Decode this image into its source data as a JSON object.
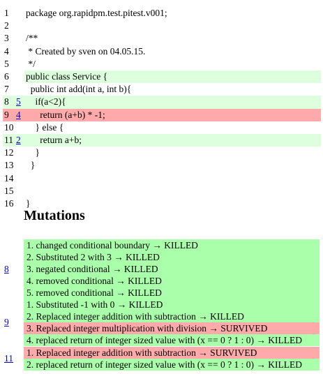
{
  "code_lines": [
    {
      "n": "1",
      "m": "",
      "text": "package org.rapidpm.test.pitest.v001;",
      "st": ""
    },
    {
      "n": "2",
      "m": "",
      "text": "",
      "st": ""
    },
    {
      "n": "3",
      "m": "",
      "text": "/**",
      "st": ""
    },
    {
      "n": "4",
      "m": "",
      "text": " * Created by sven on 04.05.15.",
      "st": ""
    },
    {
      "n": "5",
      "m": "",
      "text": " */",
      "st": ""
    },
    {
      "n": "6",
      "m": "",
      "text": "public class Service {",
      "st": "covered"
    },
    {
      "n": "7",
      "m": "",
      "text": "  public int add(int a, int b){",
      "st": ""
    },
    {
      "n": "8",
      "m": "5",
      "text": "    if(a<2){",
      "st": "covered"
    },
    {
      "n": "9",
      "m": "4",
      "text": "      return (a+b) * -1;",
      "st": "uncovered"
    },
    {
      "n": "10",
      "m": "",
      "text": "    } else {",
      "st": ""
    },
    {
      "n": "11",
      "m": "2",
      "text": "      return a+b;",
      "st": "covered"
    },
    {
      "n": "12",
      "m": "",
      "text": "    }",
      "st": ""
    },
    {
      "n": "13",
      "m": "",
      "text": "  }",
      "st": ""
    },
    {
      "n": "14",
      "m": "",
      "text": "",
      "st": ""
    },
    {
      "n": "15",
      "m": "",
      "text": "",
      "st": ""
    },
    {
      "n": "16",
      "m": "",
      "text": "}",
      "st": ""
    }
  ],
  "mutations_title": "Mutations",
  "mutation_groups": [
    {
      "line": "8",
      "items": [
        {
          "text": "1. changed conditional boundary → KILLED",
          "status": "KILLED"
        },
        {
          "text": "2. Substituted 2 with 3 → KILLED",
          "status": "KILLED"
        },
        {
          "text": "3. negated conditional → KILLED",
          "status": "KILLED"
        },
        {
          "text": "4. removed conditional → KILLED",
          "status": "KILLED"
        },
        {
          "text": "5. removed conditional → KILLED",
          "status": "KILLED"
        }
      ]
    },
    {
      "line": "9",
      "items": [
        {
          "text": "1. Substituted -1 with 0 → KILLED",
          "status": "KILLED"
        },
        {
          "text": "2. Replaced integer addition with subtraction → KILLED",
          "status": "KILLED"
        },
        {
          "text": "3. Replaced integer multiplication with division → SURVIVED",
          "status": "SURVIVED"
        },
        {
          "text": "4. replaced return of integer sized value with (x == 0 ? 1 : 0) → KILLED",
          "status": "KILLED"
        }
      ]
    },
    {
      "line": "11",
      "items": [
        {
          "text": "1. Replaced integer addition with subtraction → SURVIVED",
          "status": "SURVIVED"
        },
        {
          "text": "2. replaced return of integer sized value with (x == 0 ? 1 : 0) → KILLED",
          "status": "KILLED"
        }
      ]
    }
  ],
  "colors": {
    "covered_line": "#ddffdd",
    "uncovered_line": "#ffaaaa",
    "killed": "#aaffaa",
    "survived": "#ffaaaa",
    "link": "#0000cc"
  }
}
